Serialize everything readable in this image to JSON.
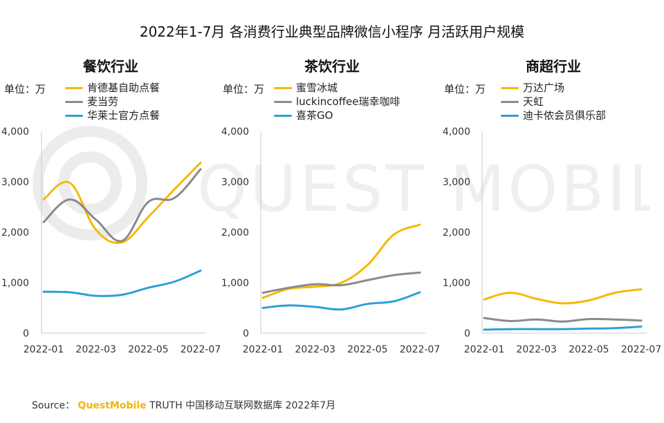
{
  "title": "2022年1-7月 各消费行业典型品牌微信小程序 月活跃用户规模",
  "watermark": "QUEST MOBILE",
  "source": {
    "label": "Source：",
    "brand": "QuestMobile",
    "rest": " TRUTH 中国移动互联网数据库 2022年7月"
  },
  "colors": {
    "gold": "#F5B800",
    "gray": "#8A8A8A",
    "blue": "#2E9FD6"
  },
  "chart_data": [
    {
      "type": "line",
      "title": "餐饮行业",
      "unit_label": "单位：万",
      "x": [
        "2022-01",
        "2022-02",
        "2022-03",
        "2022-04",
        "2022-05",
        "2022-06",
        "2022-07"
      ],
      "x_tick_labels": [
        "2022-01",
        "2022-03",
        "2022-05",
        "2022-07"
      ],
      "ylim": [
        0,
        4000
      ],
      "y_ticks": [
        "0",
        "1,000",
        "2,000",
        "3,000",
        "4,000"
      ],
      "series": [
        {
          "name": "肯德基自助点餐",
          "color": "#F5B800",
          "values": [
            2650,
            2980,
            2050,
            1800,
            2300,
            2850,
            3380
          ]
        },
        {
          "name": "麦当劳",
          "color": "#8A8A8A",
          "values": [
            2200,
            2650,
            2250,
            1830,
            2600,
            2680,
            3250
          ]
        },
        {
          "name": "华莱士官方点餐",
          "color": "#2E9FD6",
          "values": [
            820,
            810,
            740,
            760,
            900,
            1020,
            1240
          ]
        }
      ]
    },
    {
      "type": "line",
      "title": "茶饮行业",
      "unit_label": "单位：万",
      "x": [
        "2022-01",
        "2022-02",
        "2022-03",
        "2022-04",
        "2022-05",
        "2022-06",
        "2022-07"
      ],
      "x_tick_labels": [
        "2022-01",
        "2022-03",
        "2022-05",
        "2022-07"
      ],
      "ylim": [
        0,
        4000
      ],
      "y_ticks": [
        "0",
        "1,000",
        "2,000",
        "3,000",
        "4,000"
      ],
      "series": [
        {
          "name": "蜜雪冰城",
          "color": "#F5B800",
          "values": [
            700,
            880,
            920,
            1000,
            1350,
            1950,
            2150
          ]
        },
        {
          "name": "luckincoffee瑞幸咖啡",
          "color": "#8A8A8A",
          "values": [
            800,
            900,
            970,
            950,
            1050,
            1150,
            1200
          ]
        },
        {
          "name": "喜茶GO",
          "color": "#2E9FD6",
          "values": [
            500,
            550,
            520,
            470,
            580,
            630,
            810
          ]
        }
      ]
    },
    {
      "type": "line",
      "title": "商超行业",
      "unit_label": "单位：万",
      "x": [
        "2022-01",
        "2022-02",
        "2022-03",
        "2022-04",
        "2022-05",
        "2022-06",
        "2022-07"
      ],
      "x_tick_labels": [
        "2022-01",
        "2022-03",
        "2022-05",
        "2022-07"
      ],
      "ylim": [
        0,
        4000
      ],
      "y_ticks": [
        "0",
        "1,000",
        "2,000",
        "3,000",
        "4,000"
      ],
      "series": [
        {
          "name": "万达广场",
          "color": "#F5B800",
          "values": [
            670,
            800,
            680,
            590,
            650,
            800,
            870
          ]
        },
        {
          "name": "天虹",
          "color": "#8A8A8A",
          "values": [
            300,
            240,
            270,
            230,
            280,
            270,
            250
          ]
        },
        {
          "name": "迪卡侬会员俱乐部",
          "color": "#2E9FD6",
          "values": [
            70,
            80,
            80,
            80,
            90,
            100,
            130
          ]
        }
      ]
    }
  ]
}
